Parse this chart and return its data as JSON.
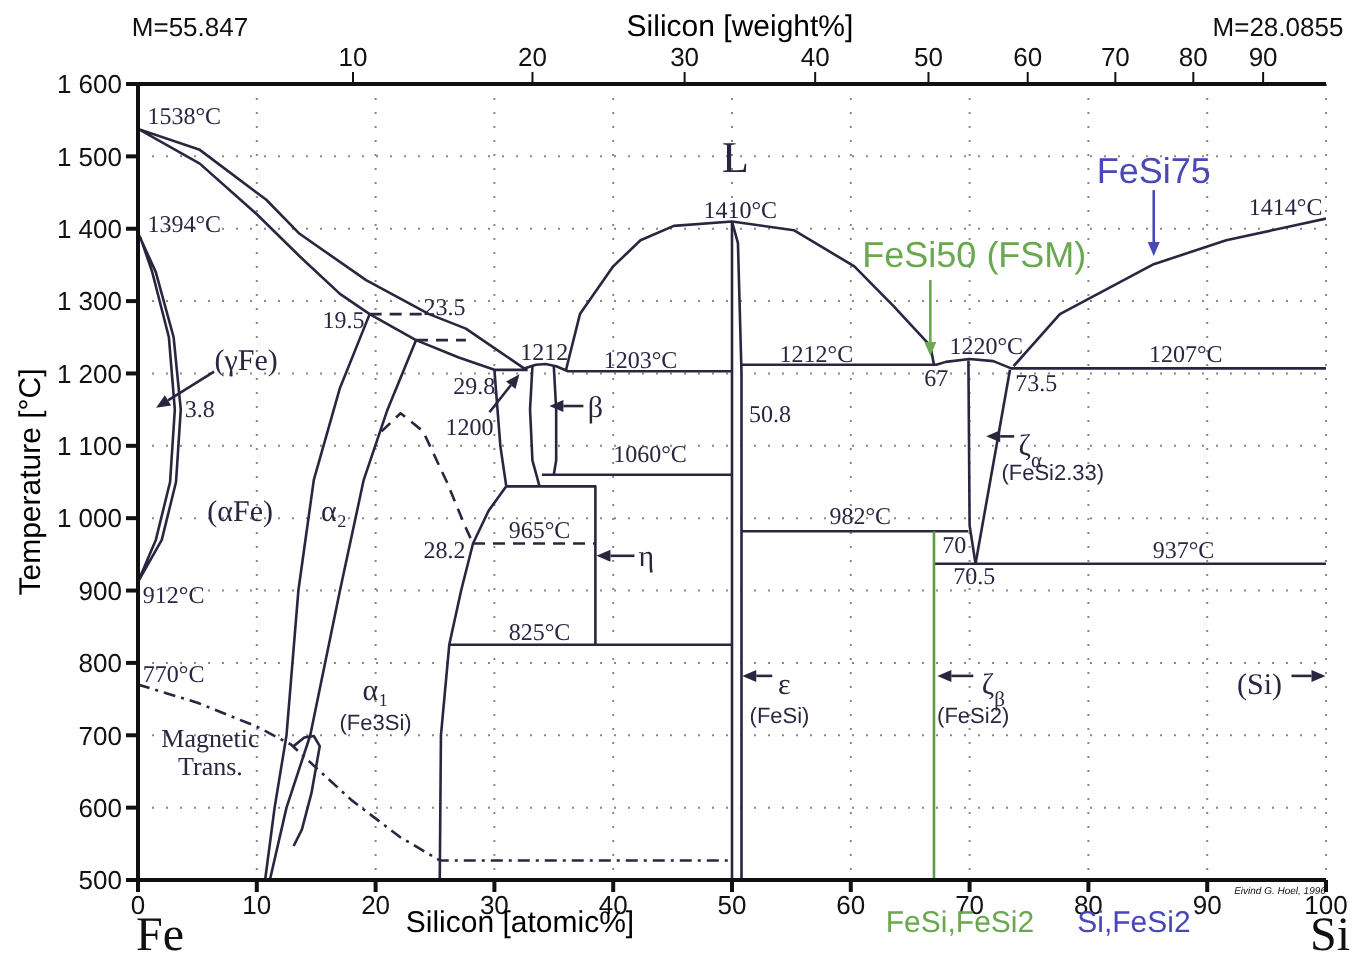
{
  "chart_data": {
    "type": "line",
    "xlabel": "Silicon [atomic%]",
    "x2label": "Silicon [weight%]",
    "ylabel": "Temperature [°C]",
    "xlim": [
      0,
      100
    ],
    "xticks": [
      0,
      10,
      20,
      30,
      40,
      50,
      60,
      70,
      80,
      90,
      100
    ],
    "ylim": [
      500,
      1600
    ],
    "yticks": [
      500,
      600,
      700,
      800,
      900,
      {
        "value": 1000,
        "label": "1 000"
      },
      {
        "value": 1100,
        "label": "1 100"
      },
      {
        "value": 1200,
        "label": "1 200"
      },
      {
        "value": 1300,
        "label": "1 300"
      },
      {
        "value": 1400,
        "label": "1 400"
      },
      {
        "value": 1500,
        "label": "1 500"
      },
      {
        "value": 1600,
        "label": "1 600"
      }
    ],
    "grid": true,
    "series": [
      {
        "color": "#2b2540",
        "x": [
          32.8,
          30,
          27,
          23.4,
          19.5,
          17,
          13.6,
          10,
          5.2,
          0,
          5.2,
          10.8,
          13.6,
          19.2,
          24.5,
          27.6,
          30,
          32.5,
          33.5,
          34.3,
          35.2,
          36.2,
          50
        ],
        "values": [
          1205,
          1205,
          1222,
          1246,
          1282,
          1310,
          1362,
          1420,
          1490,
          1538,
          1509,
          1440,
          1393,
          1329,
          1282,
          1262,
          1235,
          1207,
          1212,
          1213,
          1210,
          1203,
          1203
        ]
      },
      {
        "color": "#2b2540",
        "line_style": "dashed",
        "x": [
          19.5,
          24.5
        ],
        "values": [
          1282,
          1282
        ]
      },
      {
        "color": "#2b2540",
        "line_style": "dashed",
        "x": [
          23.4,
          27.6
        ],
        "values": [
          1246,
          1246
        ]
      },
      {
        "color": "#2b2540",
        "x": [
          19.5,
          17,
          14.8,
          13.5,
          12.5,
          11.5,
          10.7
        ],
        "values": [
          1282,
          1180,
          1053,
          900,
          700,
          600,
          500
        ]
      },
      {
        "color": "#2b2540",
        "x": [
          23.4,
          21,
          19,
          17,
          14.5,
          12.5,
          11.1
        ],
        "values": [
          1246,
          1150,
          1053,
          900,
          700,
          600,
          500
        ]
      },
      {
        "color": "#2b2540",
        "line_style": "dashed",
        "x": [
          20.5,
          22.1,
          24,
          26,
          27.5,
          28.2
        ],
        "values": [
          1120,
          1145,
          1120,
          1050,
          990,
          965
        ]
      },
      {
        "color": "#2b2540",
        "line_style": "dotted",
        "x": [
          0,
          5,
          10,
          12.9,
          15,
          18,
          22,
          25.4,
          50
        ],
        "values": [
          770,
          745,
          712,
          687,
          655,
          610,
          560,
          527,
          527
        ]
      },
      {
        "color": "#2b2540",
        "x": [
          13.1,
          14.0,
          14.8,
          15.3,
          14.6,
          13.8,
          13.1
        ],
        "values": [
          685,
          697,
          699,
          685,
          620,
          570,
          547
        ]
      },
      {
        "color": "#2b2540",
        "x": [
          0,
          1.5,
          3,
          3.6,
          3.2,
          2,
          0,
          1.5,
          2.7,
          3.1,
          2.6,
          1.2,
          0.2
        ],
        "values": [
          1394,
          1340,
          1250,
          1150,
          1050,
          970,
          912,
          970,
          1050,
          1150,
          1250,
          1340,
          1388
        ]
      },
      {
        "color": "#2b2540",
        "x": [
          25.4,
          25.5,
          26.2,
          27.2,
          28.2,
          29.5,
          31
        ],
        "values": [
          500,
          700,
          825,
          900,
          965,
          1010,
          1044
        ]
      },
      {
        "color": "#2b2540",
        "x": [
          30,
          30.5,
          31
        ],
        "values": [
          1205,
          1100,
          1044
        ]
      },
      {
        "color": "#2b2540",
        "x": [
          33.2,
          33.0,
          33.2,
          33.8
        ],
        "values": [
          1210,
          1150,
          1080,
          1044
        ]
      },
      {
        "color": "#2b2540",
        "x": [
          35,
          35.2,
          35.2,
          35
        ],
        "values": [
          1210,
          1150,
          1080,
          1060
        ]
      },
      {
        "color": "#2b2540",
        "x": [
          34,
          50
        ],
        "values": [
          1060,
          1060
        ]
      },
      {
        "color": "#2b2540",
        "x": [
          31,
          38.5,
          38.5
        ],
        "values": [
          1044,
          1044,
          825
        ]
      },
      {
        "color": "#2b2540",
        "line_style": "dashed",
        "x": [
          28.2,
          38.5
        ],
        "values": [
          965,
          965
        ]
      },
      {
        "color": "#2b2540",
        "x": [
          26.2,
          50
        ],
        "values": [
          825,
          825
        ]
      },
      {
        "color": "#2b2540",
        "x": [
          50,
          50
        ],
        "values": [
          500,
          1410
        ]
      },
      {
        "color": "#2b2540",
        "x": [
          50.8,
          50.8,
          50.5,
          50
        ],
        "values": [
          500,
          1200,
          1380,
          1410
        ]
      },
      {
        "color": "#2b2540",
        "x": [
          36,
          37.2,
          40,
          42.3,
          45.1,
          50,
          55.2,
          60.3,
          63.6,
          66.7,
          67
        ],
        "values": [
          1203,
          1282,
          1348,
          1384,
          1404,
          1410,
          1398,
          1348,
          1293,
          1238,
          1212
        ]
      },
      {
        "color": "#2b2540",
        "x": [
          50.8,
          67.2,
          68,
          70,
          72,
          73.5,
          100
        ],
        "values": [
          1212,
          1212,
          1216,
          1220,
          1217,
          1207,
          1207
        ]
      },
      {
        "color": "#2b2540",
        "x": [
          73.7,
          77.6,
          85.5,
          91.6,
          100
        ],
        "values": [
          1210,
          1282,
          1351,
          1384,
          1414
        ]
      },
      {
        "color": "#2b2540",
        "x": [
          69.9,
          70.0,
          70.5
        ],
        "values": [
          1218,
          990,
          937
        ]
      },
      {
        "color": "#2b2540",
        "x": [
          73.4,
          70.5
        ],
        "values": [
          1205,
          937
        ]
      },
      {
        "color": "#2b2540",
        "x": [
          50.8,
          69.9
        ],
        "values": [
          982,
          982
        ]
      },
      {
        "color": "#2b2540",
        "x": [
          67,
          100
        ],
        "values": [
          937,
          937
        ]
      },
      {
        "color": "#5f9a45",
        "x": [
          67,
          67
        ],
        "values": [
          500,
          982
        ]
      }
    ],
    "annotations": [
      "1538°C",
      "1394°C",
      "912°C",
      "770°C",
      "Magnetic Trans.",
      "(γFe)",
      "3.8",
      "(αFe)",
      "α₂",
      "α₁",
      "(Fe3Si)",
      "19.5",
      "23.5",
      "29.8",
      "1200",
      "1212",
      "1203°C",
      "β",
      "1060°C",
      "965°C",
      "28.2",
      "η",
      "825°C",
      "L",
      "1410°C",
      "50.8",
      "ε",
      "(FeSi)",
      "1212°C",
      "67",
      "1220°C",
      "73.5",
      "1207°C",
      "1414°C",
      "FeSi75",
      "FeSi50 (FSM)",
      "ζ$_{α}$",
      "(FeSi2.33)",
      "982°C",
      "70",
      "70.5",
      "937°C",
      "ζ$_{β}$",
      "(FeSi2)",
      "(Si)",
      "M=55.847",
      "M=28.0855",
      "Fe",
      "Si",
      "FeSi,FeSi2",
      "Si,FeSi2",
      "Eivind G. Hoel, 1996",
      "10",
      "20",
      "30",
      "40",
      "50",
      "60",
      "70",
      "80",
      "90"
    ]
  }
}
